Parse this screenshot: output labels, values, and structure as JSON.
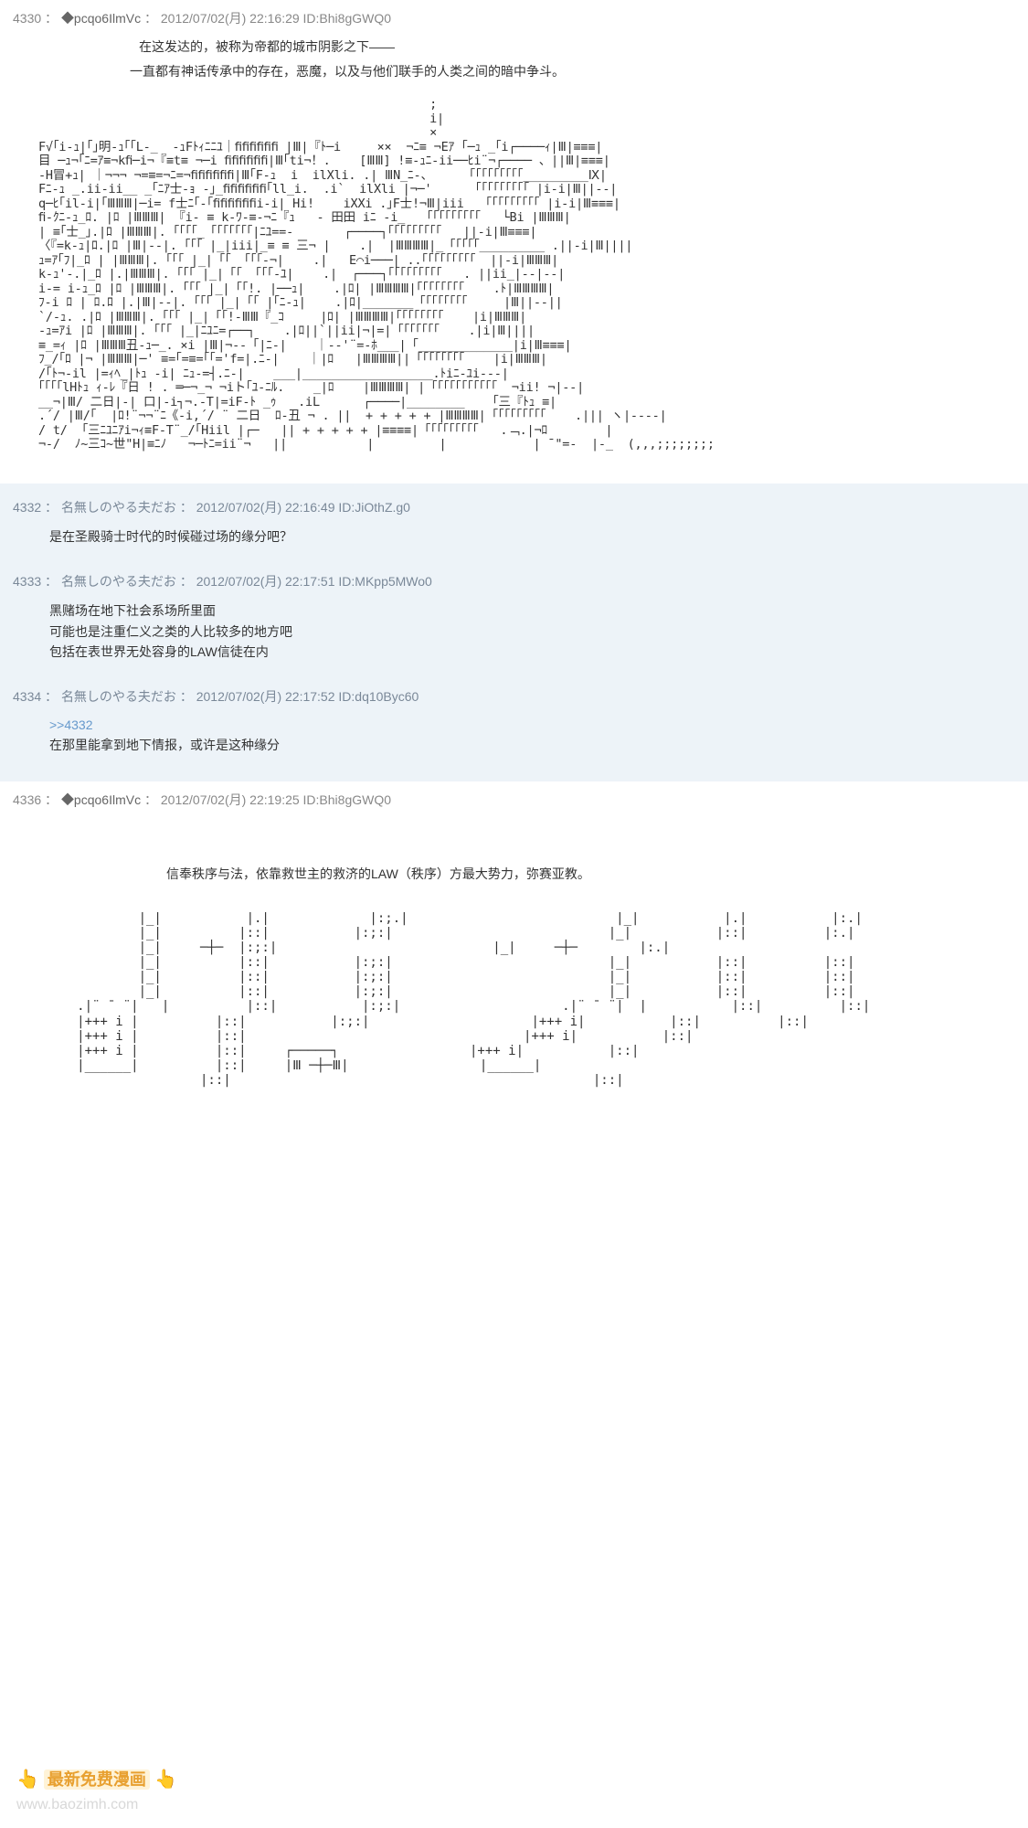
{
  "posts": [
    {
      "num": "4330",
      "name": "◆pcqo6IlmVc",
      "datetime": "2012/07/02(月) 22:16:29",
      "id": "ID:Bhi8gGWQ0",
      "story1": "在这发达的，被称为帝都的城市阴影之下——",
      "story2": "一直都有神话传承中的存在，恶魔，以及与他们联手的人类之间的暗中争斗。"
    }
  ],
  "replies": [
    {
      "num": "4332",
      "name": "名無しのやる夫だお",
      "datetime": "2012/07/02(月) 22:16:49",
      "id": "ID:JiOthZ.g0",
      "lines": [
        "是在圣殿骑士时代的时候碰过场的缘分吧？"
      ]
    },
    {
      "num": "4333",
      "name": "名無しのやる夫だお",
      "datetime": "2012/07/02(月) 22:17:51",
      "id": "ID:MKpp5MWo0",
      "lines": [
        "黑赌场在地下社会系场所里面",
        "可能也是注重仁义之类的人比较多的地方吧",
        "包括在表世界无处容身的LAW信徒在内"
      ]
    },
    {
      "num": "4334",
      "name": "名無しのやる夫だお",
      "datetime": "2012/07/02(月) 22:17:52",
      "id": "ID:dq10Byc60",
      "ref": ">>4332",
      "lines": [
        "在那里能拿到地下情报，或许是这种缘分"
      ]
    }
  ],
  "post2": {
    "num": "4336",
    "name": "◆pcqo6IlmVc",
    "datetime": "2012/07/02(月) 22:19:25",
    "id": "ID:Bhi8gGWQ0",
    "story": "信奉秩序与法，依靠救世主的救济的LAW（秩序）方最大势力，弥赛亚教。"
  },
  "watermark": {
    "text": "最新免费漫画",
    "url": "www.baozimh.com"
  },
  "aa1": "                                                      ;\n                                                      i|\n                                                      ×\nF√｢i-ｭ|｢｣明-ｭ｢｢L-_  -ｭFﾄｨﾆﾆﾕ｜ﬁﬁﬁﬁﬁﬁ |Ⅲ|『ﾄ─i     ××  ¬ﾆ≡ ¬Eｱ ｢─ｭ _｢i┌────ｨ|Ⅲ|≡≡≡|\n目 ─ｭ¬｢ﾆ=ｱ≡¬kﬁ─i¬『≡t≡ ¬─i ﬁﬁﬁﬁﬁﬁ|Ⅲ｢ti¬！.    [ⅢⅢ] !≡-ｭﾆ-ii──ﾋi¨¬┌──── 、||Ⅲ|≡≡≡|\n-H冒+ｭ| ｜¬¬¬ ¬=≡=¬ﾆ=¬ﬁﬁﬁﬁﬁﬁ|Ⅲ｢F-ｭ  i  ilXli. .| ⅢN_ﾆ-、     ｢「「「「「「「「_________Ⅸ|\nFﾆ-ｭ _.ii-ii__ _｢ﾆｱ士-ｮ -｣_ﬁﬁﬁﬁﬁﬁ｢ll_i.  .i`  ilXli |¬─'      ｢「「「「「「「「 |i-i|Ⅲ||--|\nq─ﾋ｢il-i|｢ⅢⅢⅢ|─i= f士ﾆ｢-｢ﬁﬁﬁﬁﬁﬁi-i| Hi!    iXXi .｣F士!¬Ⅲ|iii   ｢「「「「「「「「 |i-i|Ⅲ≡≡≡|\nﬁ-ｸﾆ-ｭ_ﾛ. |ﾛ |ⅢⅢⅢ| 『i- ≡ k-ﾜ-≡-¬ﾆ『ｭ   - 田田 iﾆ -i_   ｢「「「「「「「「   └Bi |ⅢⅢⅢ|\n| ≡｢士_｣.|ﾛ |ⅢⅢⅢ|. ｢「「「_「「「「「「「|ﾆﾕ==-       ┌────┐｢「「「「「「「「   ||-i|Ⅲ≡≡≡|\n〈『=k-ｭ|ﾛ.|ﾛ |Ⅲ|--|. ｢「「 |_|iii|_≡ ≡ 三¬ |    .|  |ⅢⅢⅢⅢ|_「「「「「_________ .||-i|Ⅲ||||\nｭ=ｱ｢ﾌ|_ﾛ | |ⅢⅢⅢ|. ｢「「 |_|「「 「「「-¬|    .|   E⌒i───| ..｢「「「「「「「「  ||-i|ⅢⅢⅢ|\nk-ｭ'-.|_ﾛ |.|ⅢⅢⅢ|. ｢「「 |_|「「 「「「-ﾕ|    .|  ┌───┐｢「「「「「「「「   . ||ii_|--|--|\ni-= i-ｭ_ﾛ |ﾛ |ⅢⅢⅢ|. ｢「「 |_|「「!. |──ｭ|    .|ﾛ| |ⅢⅢⅢⅢ|｢「「「「「「「    .ﾄ|ⅢⅢⅢⅢ|\nﾌ-i ﾛ | ﾛ.ﾛ |.|Ⅲ|--|. ｢「「 |_|「「 |｢ﾆ-ｭ|    .|ﾛ|_______「「「「「「「「     |Ⅲ||--||\n`/-ｭ. .|ﾛ |ⅢⅢⅢ|. ｢「「 |_|「「!-ⅢⅢ『_ｺ     |ﾛ| |ⅢⅢⅢⅢ|｢「「「「「「「    |i|ⅢⅢⅢ|\n-ｭ=ｱi |ﾛ |ⅢⅢⅢ|. ｢「「 |_|ﾆﾕﾆ=┌──┐    .|ﾛ||`||ii|¬|=|「「「「「「「    .|i|Ⅲ||||\n≡_=ｨ |ﾛ |ⅢⅢⅢ丑-ｭ─_. ×i |Ⅲ|¬--「|ﾆ-|    ｜--'¨=-ﾎ___|「_____________|i|Ⅲ≡≡≡|\nﾌ_/｢ﾛ |¬ |ⅢⅢⅢ|─' ≡=｢=≡=｢｢='f=|.ﾆ-|    ｜|ﾛ   |ⅢⅢⅢⅢ||「「「「「「「「    |i|ⅢⅢⅢ|\n/｢ﾄ¬-il |=ｨﾍ_|ﾄｭ -i| ﾆｭ-=┤.ﾆ-|    ___|__________________.ﾄiﾆ-ﾕi---|\n｢｢｢｢lHﾄｭ ｨ-ﾚ『日 ! . ═─¬_¬ ¬iト｢ﾕ-ﾆﾙ.    _|ﾛ    |ⅢⅢⅢⅢ| |「「「「「「「「「「「  ¬ii! ¬|--|\n__¬|Ⅲ/ 二日|-| 口|-i┐¬.-T|=iF-ﾄ _ｩ   .iL      ┌────|________   「三『ﾄｭ ≡|\n.´/ |Ⅲ/｢  |ﾛ!¨¬¬¨ﾆ《-i,´/ ¨ 二日  ﾛ-丑 ¬ . ||  + + + + + |ⅢⅢⅢⅢ|「「「「「「「「「    .||| ヽ|----|\n/ t/  ｢三ﾆﾕﾆｱi¬ｨ≡F-T¨_/｢Hiil |┌─   || + + + + + |≡≡≡≡|「「「「「「「「「   .﹁.|¬ﾛ        |\n¬-/  ﾉ~三ｺ~世\"H|≡ﾆﾉ   ¬─ﾄﾆ=ii¨¬   ||           |         |            | ¯\"=-  |-_  (,,,;;;;;;;;",
  "aa2": "             |_|           |.|             |:;.|                           |_|           |.|           |:.|\n             |_|          |::|           |:;:|                            |_|           |::|          |:.|\n             |_|     ─┼─  |:;:|                            |_|     ─┼─        |:.|\n             |_|          |::|           |:;:|                            |_|           |::|          |::|\n             |_|          |::|           |:;:|                            |_|           |::|          |::|\n             |_|          |::|           |:;:|                            |_|           |::|          |::|\n     .|¨ ¯ ¨|   |          |::|           |:;:|                     .|¨ ¯ ¨|  |           |::|          |::|\n     |+++ i |          |::|           |:;:|                     |+++ i|           |::|          |::|\n     |+++ i |          |::|                                    |+++ i|           |::|          \n     |+++ i |          |::|     ┌─────┐                 |+++ i|           |::|          \n     |______|          |::|     |Ⅲ ─┼─Ⅲ|                 |______|\n                     |::|                                               |::|"
}
